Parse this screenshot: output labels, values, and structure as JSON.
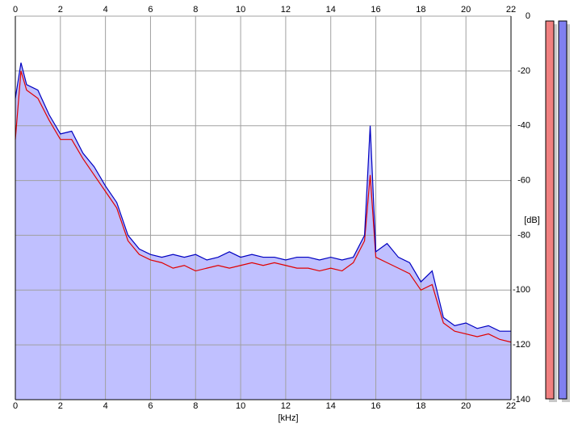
{
  "chart_data": {
    "type": "line",
    "xlabel": "[kHz]",
    "ylabel": "[dB]",
    "x": [
      0,
      0.25,
      0.5,
      1,
      1.5,
      2,
      2.5,
      3,
      3.5,
      4,
      4.5,
      5,
      5.5,
      6,
      6.5,
      7,
      7.5,
      8,
      8.5,
      9,
      9.5,
      10,
      10.5,
      11,
      11.5,
      12,
      12.5,
      13,
      13.5,
      14,
      14.5,
      15,
      15.5,
      15.75,
      16,
      16.5,
      17,
      17.5,
      18,
      18.5,
      19,
      19.5,
      20,
      20.5,
      21,
      21.5,
      22
    ],
    "series": [
      {
        "color": "#e00000",
        "values": [
          -45,
          -20,
          -27,
          -30,
          -38,
          -45,
          -45,
          -52,
          -58,
          -64,
          -70,
          -82,
          -87,
          -89,
          -90,
          -92,
          -91,
          -93,
          -92,
          -91,
          -92,
          -91,
          -90,
          -91,
          -90,
          -91,
          -92,
          -92,
          -93,
          -92,
          -93,
          -90,
          -82,
          -58,
          -88,
          -90,
          -92,
          -94,
          -100,
          -98,
          -112,
          -115,
          -116,
          -117,
          -116,
          -118,
          -119
        ]
      },
      {
        "color": "#0000c0",
        "values": [
          -30,
          -17,
          -25,
          -27,
          -36,
          -43,
          -42,
          -50,
          -55,
          -62,
          -68,
          -80,
          -85,
          -87,
          -88,
          -87,
          -88,
          -87,
          -89,
          -88,
          -86,
          -88,
          -87,
          -88,
          -88,
          -89,
          -88,
          -88,
          -89,
          -88,
          -89,
          -88,
          -80,
          -40,
          -86,
          -83,
          -88,
          -90,
          -97,
          -93,
          -110,
          -113,
          -112,
          -114,
          -113,
          -115,
          -115
        ]
      }
    ],
    "fill_color": "#c0c0ff",
    "xlim": [
      0,
      22
    ],
    "xticks": [
      0,
      2,
      4,
      6,
      8,
      10,
      12,
      14,
      16,
      18,
      20,
      22
    ],
    "ylim": [
      -140,
      0
    ],
    "yticks": [
      0,
      -20,
      -40,
      -60,
      -80,
      -100,
      -120,
      -140
    ],
    "grid": true
  }
}
